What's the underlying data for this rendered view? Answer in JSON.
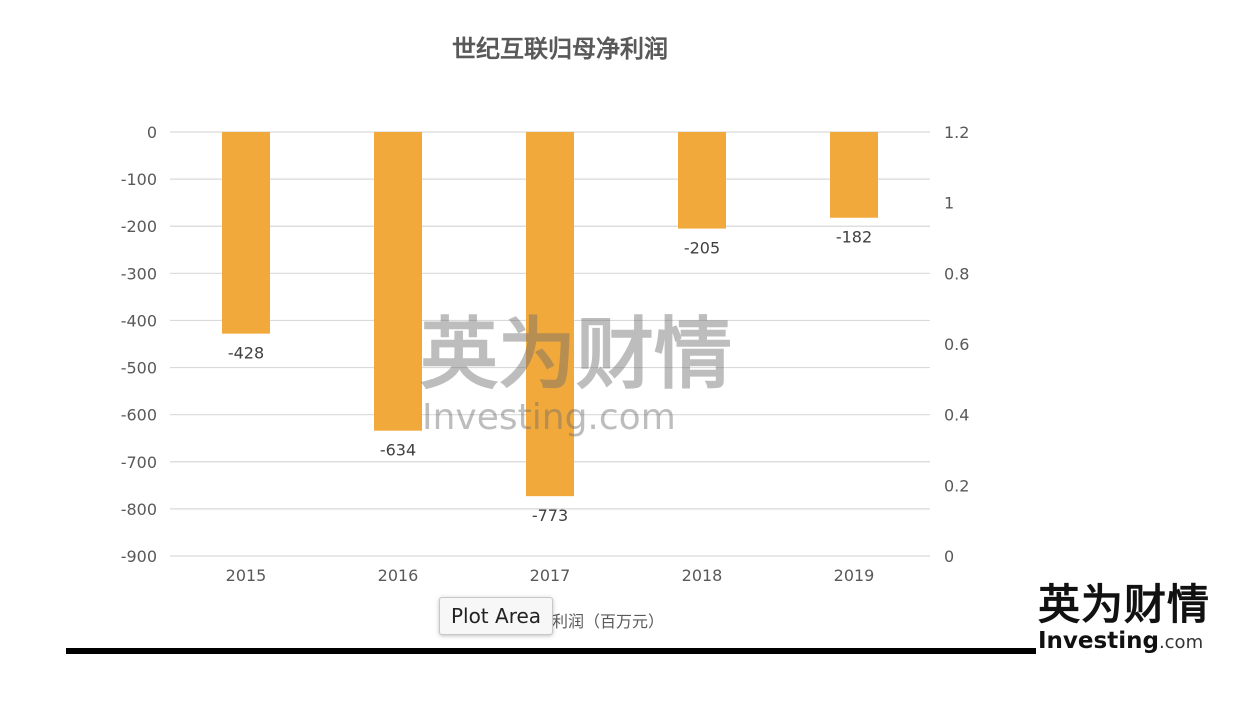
{
  "chart_data": {
    "type": "bar",
    "title": "世纪互联归母净利润",
    "categories": [
      "2015",
      "2016",
      "2017",
      "2018",
      "2019"
    ],
    "series": [
      {
        "name": "归母净利润（百万元）",
        "values": [
          -428,
          -634,
          -773,
          -205,
          -182
        ],
        "color": "#f2a93b"
      }
    ],
    "data_labels": [
      "-428",
      "-634",
      "-773",
      "-205",
      "-182"
    ],
    "ylim": [
      -900,
      0
    ],
    "y_ticks": [
      "0",
      "-100",
      "-200",
      "-300",
      "-400",
      "-500",
      "-600",
      "-700",
      "-800",
      "-900"
    ],
    "y2lim": [
      0,
      1.2
    ],
    "y2_ticks": [
      "1.2",
      "1",
      "0.8",
      "0.6",
      "0.4",
      "0.2",
      "0"
    ],
    "grid": true,
    "legend_position": "bottom"
  },
  "legend": {
    "label_visible": "利润（百万元）"
  },
  "tooltip": {
    "text": "Plot Area"
  },
  "watermark": {
    "cn": "英为财情",
    "en": "Investing.com"
  },
  "logo": {
    "cn": "英为财情",
    "en_word": "Investing",
    "en_domain": ".com"
  },
  "colors": {
    "bar": "#f2a93b",
    "grid": "#d9d9d9",
    "text": "#595959"
  }
}
